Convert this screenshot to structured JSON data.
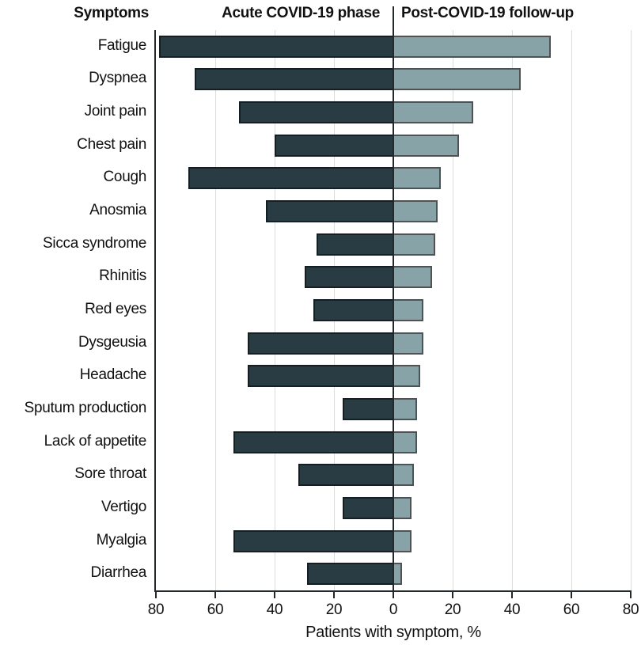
{
  "header": {
    "symptoms_col": "Symptoms",
    "acute_col": "Acute COVID-19 phase",
    "post_col": "Post-COVID-19 follow-up"
  },
  "axis": {
    "tick_labels": [
      "80",
      "60",
      "40",
      "20",
      "0",
      "20",
      "40",
      "60",
      "80"
    ],
    "title": "Patients with symptom, %"
  },
  "colors": {
    "acute_fill": "#293c43",
    "acute_border": "#141f24",
    "post_fill": "#87a3a7",
    "post_border": "#4d5254",
    "axis_line": "#23282a",
    "gridline": "#ddddda",
    "text": "#111111"
  },
  "chart_data": {
    "type": "bar",
    "variant": "diverging-horizontal",
    "title": "",
    "xlabel": "Patients with symptom, %",
    "ylabel": "Symptoms",
    "x_unit": "percent",
    "axis_range_each_side": [
      0,
      80
    ],
    "tick_interval": 20,
    "grid": true,
    "legend_position": "column-headers",
    "categories": [
      "Fatigue",
      "Dyspnea",
      "Joint pain",
      "Chest pain",
      "Cough",
      "Anosmia",
      "Sicca syndrome",
      "Rhinitis",
      "Red eyes",
      "Dysgeusia",
      "Headache",
      "Sputum production",
      "Lack of appetite",
      "Sore throat",
      "Vertigo",
      "Myalgia",
      "Diarrhea"
    ],
    "series": [
      {
        "name": "Acute COVID-19 phase",
        "side": "left",
        "values": [
          79,
          67,
          52,
          40,
          69,
          43,
          26,
          30,
          27,
          49,
          49,
          17,
          54,
          32,
          17,
          54,
          29
        ]
      },
      {
        "name": "Post-COVID-19 follow-up",
        "side": "right",
        "values": [
          53,
          43,
          27,
          22,
          16,
          15,
          14,
          13,
          10,
          10,
          9,
          8,
          8,
          7,
          6,
          6,
          3
        ]
      }
    ]
  },
  "layout_note": "diverging bar chart, zero line at center"
}
